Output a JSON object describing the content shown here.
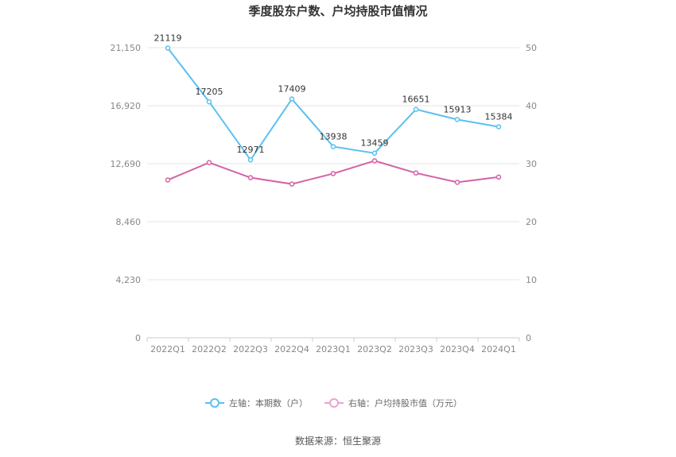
{
  "chart_data": {
    "type": "line",
    "title": "季度股东户数、户均持股市值情况",
    "categories": [
      "2022Q1",
      "2022Q2",
      "2022Q3",
      "2022Q4",
      "2023Q1",
      "2023Q2",
      "2023Q3",
      "2023Q4",
      "2024Q1"
    ],
    "left_axis": {
      "min": 0,
      "max": 25380,
      "ticks": [
        "0",
        "4,230",
        "8,460",
        "12,690",
        "16,920",
        "21,150"
      ]
    },
    "right_axis": {
      "min": 0,
      "max": 60,
      "ticks": [
        "0",
        "10",
        "20",
        "30",
        "40",
        "50"
      ]
    },
    "series": [
      {
        "name": "左轴：本期数（户）",
        "axis": "left",
        "color": "#5bc0f0",
        "values": [
          21119,
          17205,
          12971,
          17409,
          13938,
          13459,
          16651,
          15913,
          15384
        ],
        "labels": [
          "21119",
          "17205",
          "12971",
          "17409",
          "13938",
          "13459",
          "16651",
          "15913",
          "15384"
        ]
      },
      {
        "name": "右轴：户均持股市值（万元）",
        "axis": "right",
        "color": "#d462a6",
        "values": [
          27.2,
          30.2,
          27.6,
          26.5,
          28.3,
          30.5,
          28.4,
          26.8,
          27.7
        ]
      }
    ],
    "legend_position": "bottom",
    "grid": true
  },
  "source": "数据来源：恒生聚源"
}
